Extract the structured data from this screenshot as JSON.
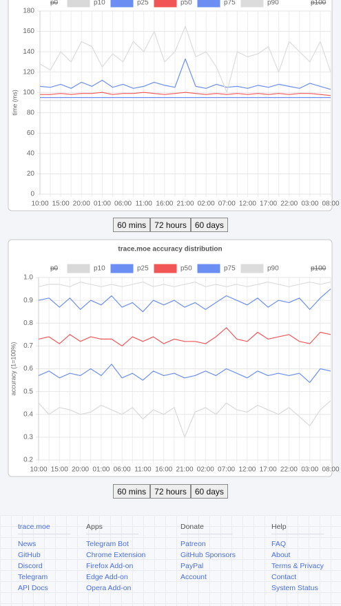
{
  "chart_data": [
    {
      "type": "line",
      "ylabel": "time (ms)",
      "ylim": [
        0,
        180
      ],
      "yticks": [
        0,
        20,
        40,
        60,
        80,
        100,
        120,
        140,
        160,
        180
      ],
      "grid": true,
      "legend": "top",
      "categories": [
        "10:00",
        null,
        "15:00",
        null,
        "20:00",
        null,
        "01:00",
        null,
        "06:00",
        null,
        "11:00",
        null,
        "16:00",
        null,
        "21:00",
        null,
        "02:00",
        null,
        "07:00",
        null,
        "12:00",
        null,
        "17:00",
        null,
        "22:00",
        null,
        "03:00",
        null,
        "08:00"
      ],
      "series": [
        {
          "name": "p0",
          "hidden": true,
          "color": "#d9d9d9",
          "values": [
            null,
            null,
            null,
            null,
            null,
            null,
            null,
            null,
            null,
            null,
            null,
            null,
            null,
            null,
            null,
            null,
            null,
            null,
            null,
            null,
            null,
            null,
            null,
            null,
            null,
            null,
            null,
            null,
            null
          ]
        },
        {
          "name": "p10",
          "color": "#d9d9d9",
          "values": [
            92,
            92,
            92,
            92,
            92,
            92,
            92,
            92,
            92,
            92,
            92,
            92,
            92,
            92,
            92,
            92,
            92,
            92,
            92,
            92,
            92,
            92,
            92,
            92,
            92,
            92,
            92,
            92,
            92
          ]
        },
        {
          "name": "p25",
          "color": "#6b8ef2",
          "values": [
            95,
            95,
            95,
            95,
            95,
            95,
            95,
            95,
            95,
            95,
            95,
            95,
            95,
            95,
            95,
            95,
            95,
            95,
            95,
            95,
            95,
            95,
            95,
            95,
            95,
            95,
            95,
            95,
            95
          ]
        },
        {
          "name": "p50",
          "color": "#f25555",
          "values": [
            98,
            98,
            99,
            98,
            99,
            99,
            100,
            98,
            99,
            99,
            100,
            99,
            98,
            99,
            100,
            99,
            98,
            99,
            98,
            99,
            98,
            99,
            98,
            99,
            98,
            99,
            99,
            98,
            97
          ]
        },
        {
          "name": "p75",
          "color": "#6b8ef2",
          "values": [
            106,
            105,
            108,
            104,
            110,
            106,
            112,
            105,
            108,
            104,
            106,
            110,
            107,
            105,
            133,
            106,
            104,
            108,
            105,
            106,
            104,
            107,
            105,
            108,
            106,
            104,
            109,
            106,
            103
          ]
        },
        {
          "name": "p90",
          "color": "#dcdcdc",
          "values": [
            128,
            122,
            140,
            130,
            150,
            145,
            125,
            138,
            130,
            150,
            140,
            160,
            130,
            140,
            165,
            135,
            140,
            125,
            100,
            140,
            135,
            138,
            145,
            120,
            150,
            140,
            130,
            150,
            120
          ]
        },
        {
          "name": "p100",
          "hidden": true,
          "color": "#d9d9d9",
          "values": [
            null,
            null,
            null,
            null,
            null,
            null,
            null,
            null,
            null,
            null,
            null,
            null,
            null,
            null,
            null,
            null,
            null,
            null,
            null,
            null,
            null,
            null,
            null,
            null,
            null,
            null,
            null,
            null,
            null
          ]
        }
      ]
    },
    {
      "type": "line",
      "title": "trace.moe accuracy distribution",
      "ylabel": "accuracy (1=100%)",
      "ylim": [
        0.2,
        1
      ],
      "yticks": [
        0.2,
        0.3,
        0.4,
        0.5,
        0.6,
        0.7,
        0.8,
        0.9,
        {
          "value": 1,
          "label": "1.0"
        }
      ],
      "grid": true,
      "legend": "top",
      "categories": [
        "10:00",
        null,
        "15:00",
        null,
        "20:00",
        null,
        "01:00",
        null,
        "06:00",
        null,
        "11:00",
        null,
        "16:00",
        null,
        "21:00",
        null,
        "02:00",
        null,
        "07:00",
        null,
        "12:00",
        null,
        "17:00",
        null,
        "22:00",
        null,
        "03:00",
        null,
        "08:00"
      ],
      "series": [
        {
          "name": "p0",
          "hidden": true,
          "color": "#d9d9d9",
          "values": [
            null,
            null,
            null,
            null,
            null,
            null,
            null,
            null,
            null,
            null,
            null,
            null,
            null,
            null,
            null,
            null,
            null,
            null,
            null,
            null,
            null,
            null,
            null,
            null,
            null,
            null,
            null,
            null,
            null
          ]
        },
        {
          "name": "p10",
          "color": "#d9d9d9",
          "values": [
            0.45,
            0.4,
            0.43,
            0.42,
            0.4,
            0.41,
            0.44,
            0.42,
            0.4,
            0.43,
            0.38,
            0.42,
            0.4,
            0.43,
            0.3,
            0.41,
            0.43,
            0.4,
            0.45,
            0.42,
            0.41,
            0.44,
            0.42,
            0.4,
            0.43,
            0.39,
            0.35,
            0.42,
            0.46
          ]
        },
        {
          "name": "p25",
          "color": "#6b8ef2",
          "values": [
            0.57,
            0.59,
            0.56,
            0.58,
            0.57,
            0.6,
            0.57,
            0.62,
            0.56,
            0.58,
            0.55,
            0.59,
            0.57,
            0.58,
            0.56,
            0.57,
            0.59,
            0.57,
            0.6,
            0.58,
            0.56,
            0.59,
            0.57,
            0.58,
            0.57,
            0.58,
            0.54,
            0.6,
            0.59
          ]
        },
        {
          "name": "p50",
          "color": "#f25555",
          "values": [
            0.73,
            0.74,
            0.71,
            0.75,
            0.72,
            0.74,
            0.73,
            0.73,
            0.7,
            0.74,
            0.72,
            0.74,
            0.71,
            0.73,
            0.72,
            0.72,
            0.71,
            0.74,
            0.78,
            0.73,
            0.72,
            0.76,
            0.73,
            0.74,
            0.75,
            0.72,
            0.71,
            0.76,
            0.75
          ]
        },
        {
          "name": "p75",
          "color": "#6b8ef2",
          "values": [
            0.9,
            0.91,
            0.87,
            0.91,
            0.86,
            0.9,
            0.88,
            0.92,
            0.87,
            0.89,
            0.85,
            0.9,
            0.88,
            0.9,
            0.87,
            0.89,
            0.86,
            0.89,
            0.92,
            0.9,
            0.88,
            0.91,
            0.87,
            0.9,
            0.89,
            0.91,
            0.86,
            0.91,
            0.95
          ]
        },
        {
          "name": "p90",
          "color": "#dcdcdc",
          "values": [
            0.96,
            0.97,
            0.97,
            0.96,
            0.98,
            0.97,
            0.96,
            0.97,
            0.96,
            0.97,
            0.98,
            0.96,
            0.97,
            0.96,
            0.97,
            0.98,
            0.96,
            0.97,
            0.96,
            0.97,
            0.96,
            0.97,
            0.98,
            0.97,
            0.96,
            0.97,
            0.98,
            0.97,
            0.98
          ]
        },
        {
          "name": "p100",
          "hidden": true,
          "color": "#d9d9d9",
          "values": [
            null,
            null,
            null,
            null,
            null,
            null,
            null,
            null,
            null,
            null,
            null,
            null,
            null,
            null,
            null,
            null,
            null,
            null,
            null,
            null,
            null,
            null,
            null,
            null,
            null,
            null,
            null,
            null,
            null
          ]
        }
      ]
    }
  ],
  "range_buttons": [
    [
      "60 mins",
      "72 hours",
      "60 days"
    ],
    [
      "60 mins",
      "72 hours",
      "60 days"
    ]
  ],
  "footer": [
    {
      "title": "trace.moe",
      "links": [
        "News",
        "GitHub",
        "Discord",
        "Telegram",
        "API Docs"
      ]
    },
    {
      "title": "Apps",
      "links": [
        "Telegram Bot",
        "Chrome Extension",
        "Firefox Add-on",
        "Edge Add-on",
        "Opera Add-on"
      ]
    },
    {
      "title": "Donate",
      "links": [
        "Patreon",
        "GitHub Sponsors",
        "PayPal",
        "Account"
      ]
    },
    {
      "title": "Help",
      "links": [
        "FAQ",
        "About",
        "Terms & Privacy",
        "Contact",
        "System Status"
      ]
    }
  ]
}
